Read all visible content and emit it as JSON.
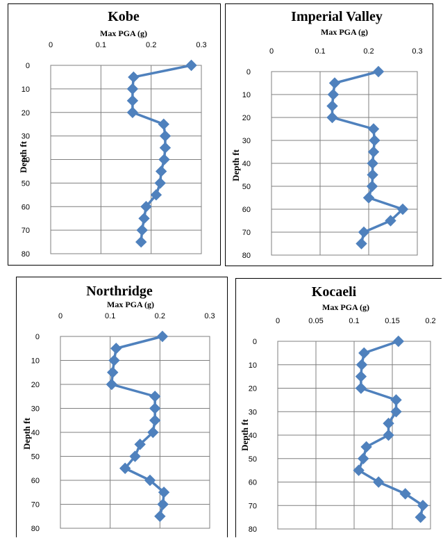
{
  "chart_data": [
    {
      "type": "line",
      "title": "Kobe",
      "xlabel": "Max PGA (g)",
      "ylabel": "Depth ft",
      "xlim": [
        0,
        0.3
      ],
      "ylim": [
        0,
        80
      ],
      "x_ticks": [
        "0",
        "0.1",
        "0.2",
        "0.3"
      ],
      "y_ticks": [
        "0",
        "10",
        "20",
        "30",
        "40",
        "50",
        "60",
        "70",
        "80"
      ],
      "x_axis_position": "top",
      "grid": true,
      "series_color": "#4F81BD",
      "series": [
        {
          "depth": [
            0,
            5,
            10,
            15,
            20,
            25,
            30,
            35,
            40,
            45,
            50,
            55,
            60,
            65,
            70,
            75
          ],
          "pga": [
            0.28,
            0.165,
            0.163,
            0.163,
            0.163,
            0.225,
            0.228,
            0.228,
            0.226,
            0.22,
            0.218,
            0.21,
            0.19,
            0.186,
            0.182,
            0.18
          ]
        }
      ]
    },
    {
      "type": "line",
      "title": "Imperial Valley",
      "xlabel": "Max PGA (g)",
      "ylabel": "Depth ft",
      "xlim": [
        0,
        0.3
      ],
      "ylim": [
        0,
        80
      ],
      "x_ticks": [
        "0",
        "0.1",
        "0.2",
        "0.3"
      ],
      "y_ticks": [
        "0",
        "10",
        "20",
        "30",
        "40",
        "50",
        "60",
        "70",
        "80"
      ],
      "x_axis_position": "top",
      "grid": true,
      "series_color": "#4F81BD",
      "series": [
        {
          "depth": [
            0,
            5,
            10,
            15,
            20,
            25,
            30,
            35,
            40,
            45,
            50,
            55,
            60,
            65,
            70,
            75
          ],
          "pga": [
            0.22,
            0.13,
            0.127,
            0.125,
            0.125,
            0.21,
            0.212,
            0.21,
            0.208,
            0.208,
            0.207,
            0.2,
            0.27,
            0.245,
            0.19,
            0.185
          ]
        }
      ]
    },
    {
      "type": "line",
      "title": "Northridge",
      "xlabel": "Max PGA (g)",
      "ylabel": "Depth ft",
      "xlim": [
        0,
        0.3
      ],
      "ylim": [
        0,
        80
      ],
      "x_ticks": [
        "0",
        "0.1",
        "0.2",
        "0.3"
      ],
      "y_ticks": [
        "0",
        "10",
        "20",
        "30",
        "40",
        "50",
        "60",
        "70",
        "80"
      ],
      "x_axis_position": "top",
      "grid": true,
      "series_color": "#4F81BD",
      "series": [
        {
          "depth": [
            0,
            5,
            10,
            15,
            20,
            25,
            30,
            35,
            40,
            45,
            50,
            55,
            60,
            65,
            70,
            75
          ],
          "pga": [
            0.205,
            0.112,
            0.108,
            0.105,
            0.103,
            0.19,
            0.19,
            0.19,
            0.186,
            0.16,
            0.15,
            0.13,
            0.18,
            0.208,
            0.206,
            0.2
          ]
        }
      ]
    },
    {
      "type": "line",
      "title": "Kocaeli",
      "xlabel": "Max PGA (g)",
      "ylabel": "Depth ft",
      "xlim": [
        0,
        0.2
      ],
      "ylim": [
        0,
        80
      ],
      "x_ticks": [
        "0",
        "0.05",
        "0.1",
        "0.15",
        "0.2"
      ],
      "y_ticks": [
        "0",
        "10",
        "20",
        "30",
        "40",
        "50",
        "60",
        "70",
        "80"
      ],
      "x_axis_position": "top",
      "grid": true,
      "series_color": "#4F81BD",
      "series": [
        {
          "depth": [
            0,
            5,
            10,
            15,
            20,
            25,
            30,
            35,
            40,
            45,
            50,
            55,
            60,
            65,
            70,
            75
          ],
          "pga": [
            0.158,
            0.113,
            0.11,
            0.109,
            0.109,
            0.155,
            0.155,
            0.145,
            0.145,
            0.116,
            0.112,
            0.106,
            0.132,
            0.167,
            0.19,
            0.187
          ]
        }
      ]
    }
  ]
}
